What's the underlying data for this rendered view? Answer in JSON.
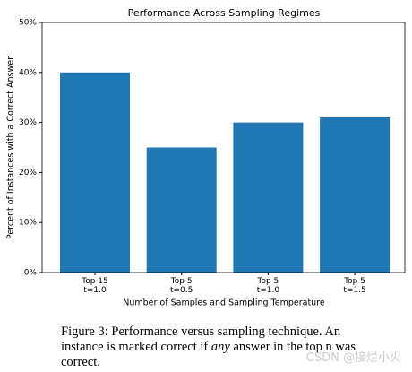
{
  "chart_data": {
    "type": "bar",
    "title": "Performance Across Sampling Regimes",
    "x_label": "Number of Samples and Sampling Temperature",
    "y_label": "Percent of Instances with a Correct Answer",
    "categories": [
      "Top 15\nt=1.0",
      "Top 5\nt=0.5",
      "Top 5\nt=1.0",
      "Top 5\nt=1.5"
    ],
    "values": [
      40,
      25,
      30,
      31
    ],
    "color": "#1f77b4",
    "ylim": [
      0,
      50
    ],
    "yticks": [
      {
        "value": 0,
        "label": "0%"
      },
      {
        "value": 10,
        "label": "10%"
      },
      {
        "value": 20,
        "label": "20%"
      },
      {
        "value": 30,
        "label": "30%"
      },
      {
        "value": 40,
        "label": "40%"
      },
      {
        "value": 50,
        "label": "50%"
      }
    ],
    "grid": false
  },
  "caption": {
    "prefix": "Figure 3: Performance versus sampling technique. An instance is marked correct if ",
    "emphasis": "any",
    "suffix": " answer in the top n was correct."
  },
  "watermark": "CSDN @接烂小火"
}
